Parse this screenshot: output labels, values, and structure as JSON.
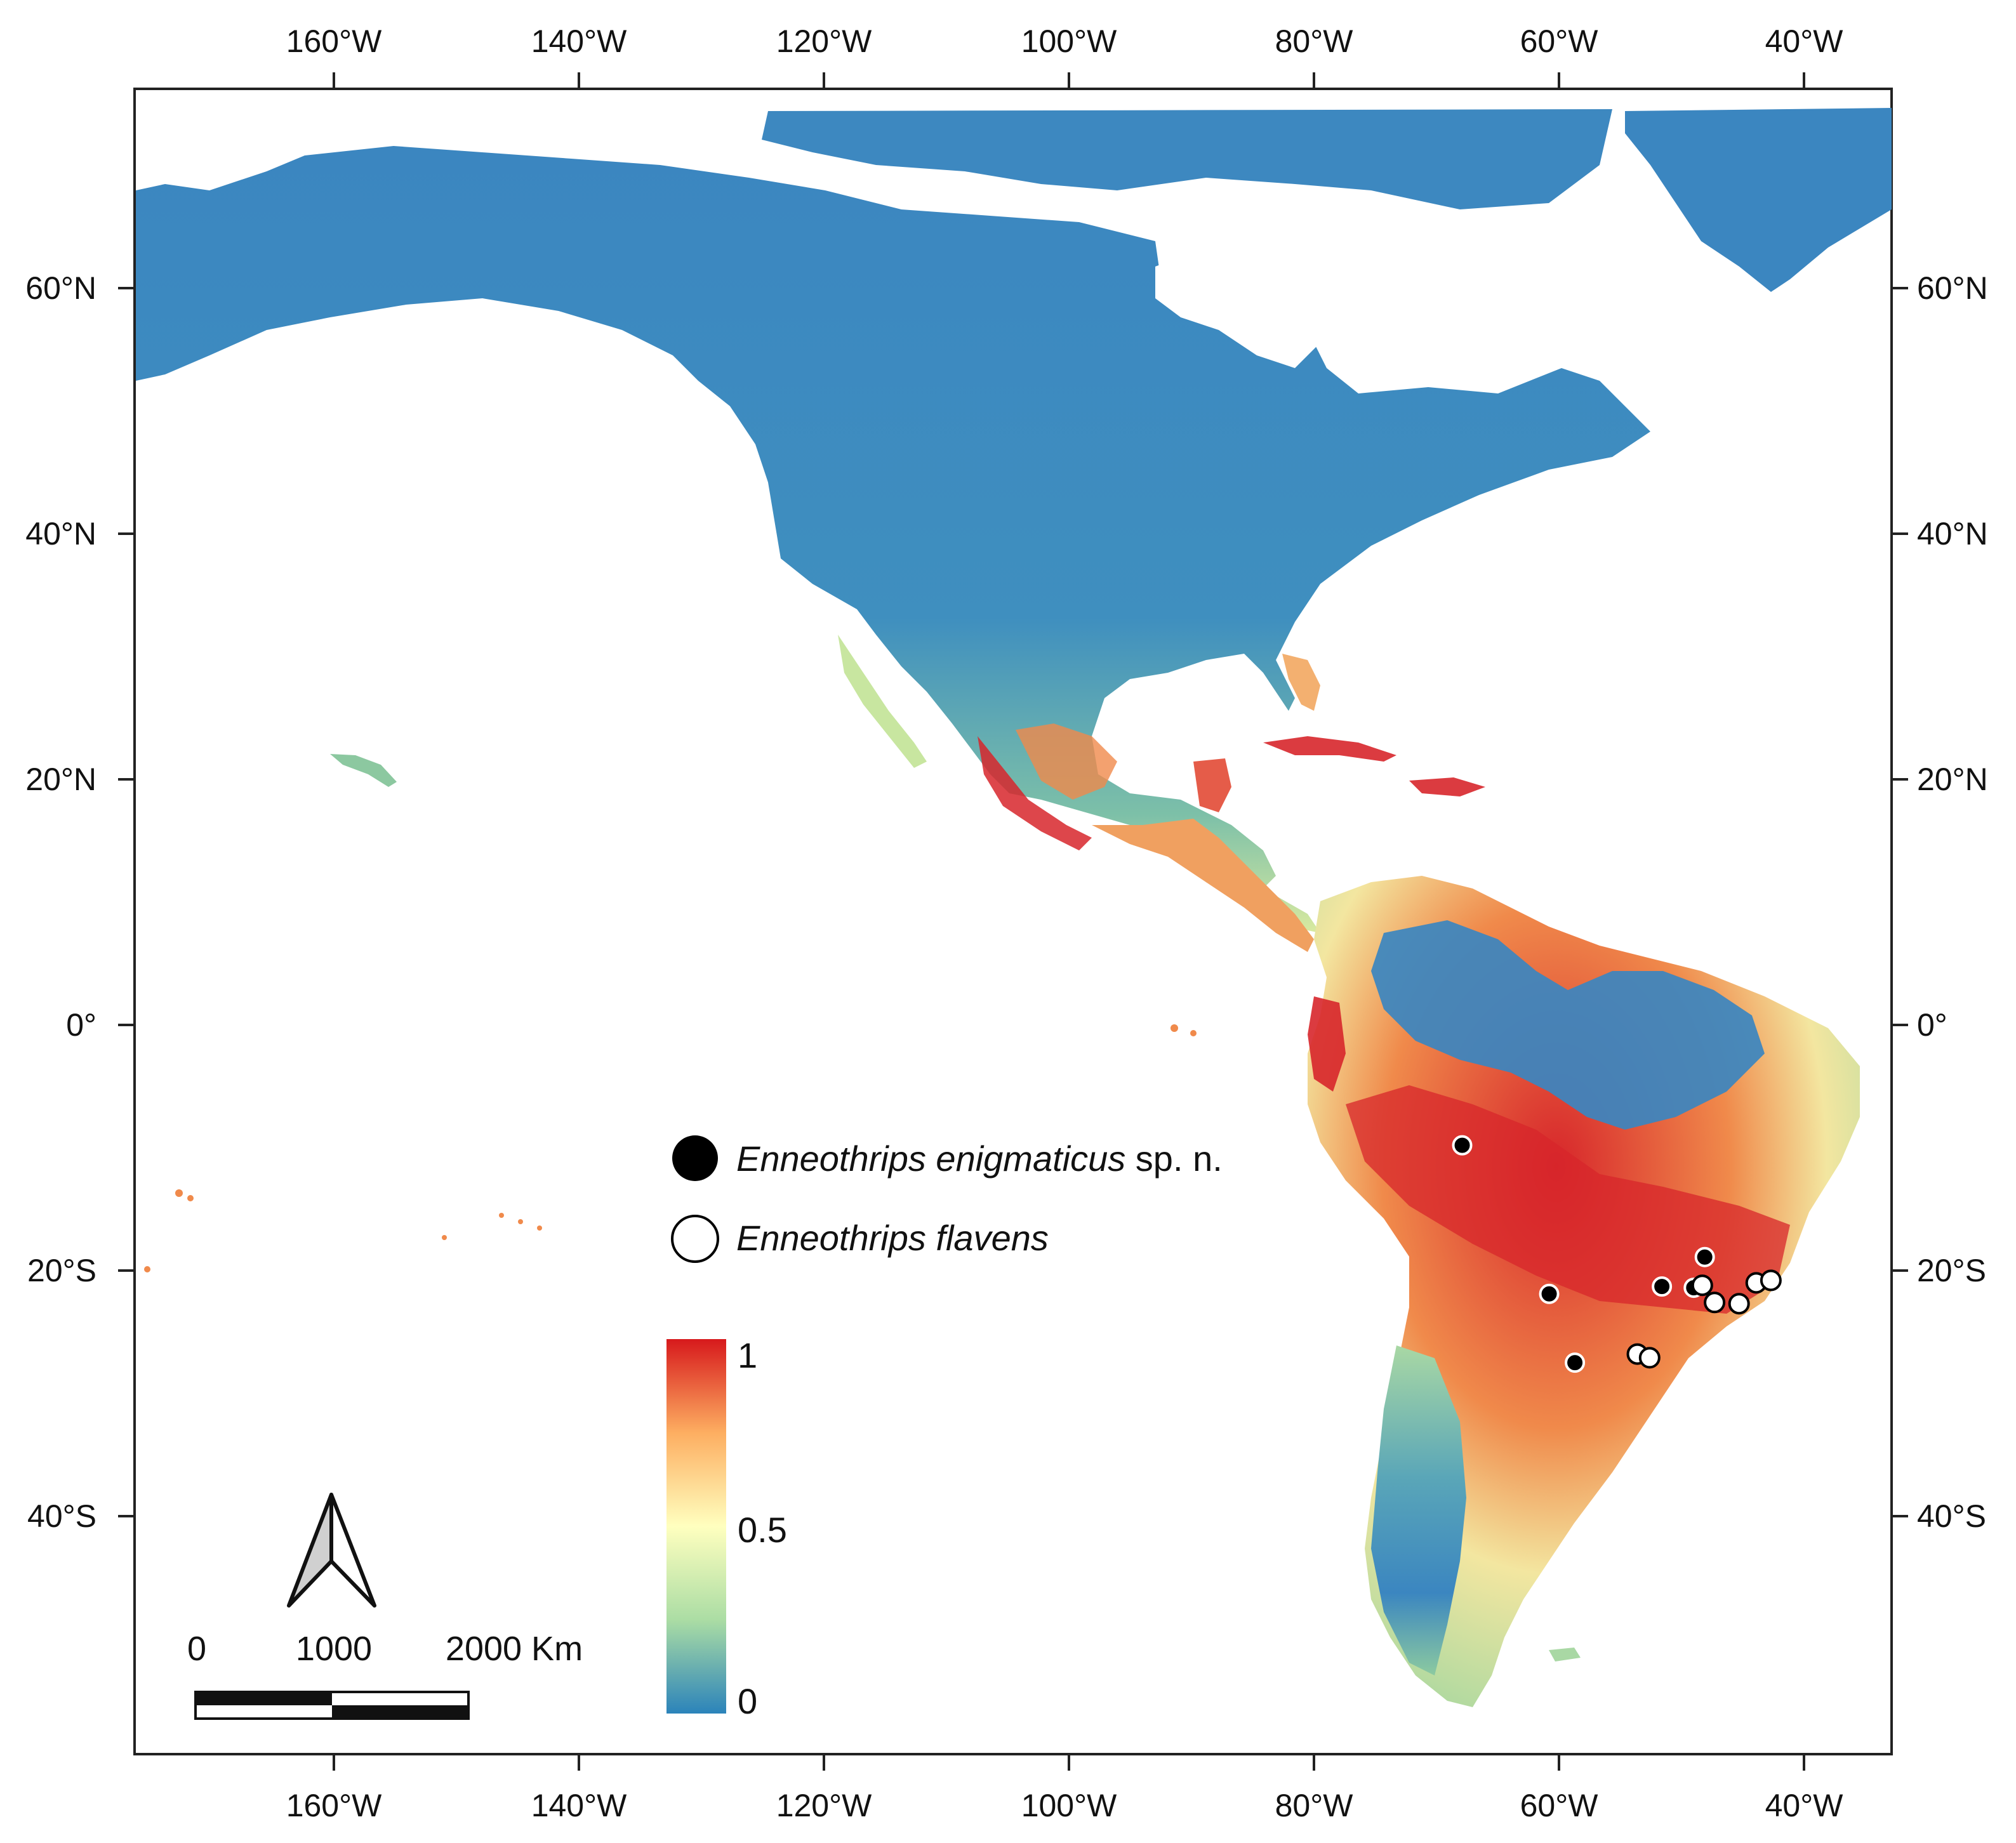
{
  "map": {
    "axes": {
      "top_lon_labels": [
        "160°W",
        "140°W",
        "120°W",
        "100°W",
        "80°W",
        "60°W",
        "40°W"
      ],
      "bottom_lon_labels": [
        "160°W",
        "140°W",
        "120°W",
        "100°W",
        "80°W",
        "60°W",
        "40°W"
      ],
      "left_lat_labels": [
        "60°N",
        "40°N",
        "20°N",
        "0°",
        "20°S",
        "40°S"
      ],
      "right_lat_labels": [
        "60°N",
        "40°N",
        "20°N",
        "0°",
        "20°S",
        "40°S"
      ]
    },
    "legend": {
      "species_1_name": "Enneothrips enigmaticus",
      "species_1_suffix": " sp. n.",
      "species_2_name": "Enneothrips flavens"
    },
    "colorbar": {
      "max_label": "1",
      "mid_label": "0.5",
      "min_label": "0",
      "colors": [
        "#d7191c",
        "#fdae61",
        "#ffffbf",
        "#abdda4",
        "#2b83ba"
      ]
    },
    "scalebar": {
      "labels": [
        "0",
        "1000",
        "2000 Km"
      ]
    },
    "land_colors": {
      "low": "#3b86c0",
      "mid": "#e8f0a8",
      "high": "#d7262b"
    },
    "points_enigmaticus": [
      {
        "lon": -67.9,
        "lat": -9.8
      },
      {
        "lon": -48.1,
        "lat": -18.9
      },
      {
        "lon": -51.6,
        "lat": -21.3
      },
      {
        "lon": -49.0,
        "lat": -21.4
      },
      {
        "lon": -60.8,
        "lat": -21.9
      },
      {
        "lon": -58.7,
        "lat": -27.5
      }
    ],
    "points_flavens": [
      {
        "lon": -48.3,
        "lat": -21.2
      },
      {
        "lon": -47.3,
        "lat": -22.6
      },
      {
        "lon": -45.3,
        "lat": -22.7
      },
      {
        "lon": -43.9,
        "lat": -21.0
      },
      {
        "lon": -42.7,
        "lat": -20.8
      },
      {
        "lon": -53.6,
        "lat": -26.8
      },
      {
        "lon": -52.6,
        "lat": -27.1
      }
    ]
  }
}
